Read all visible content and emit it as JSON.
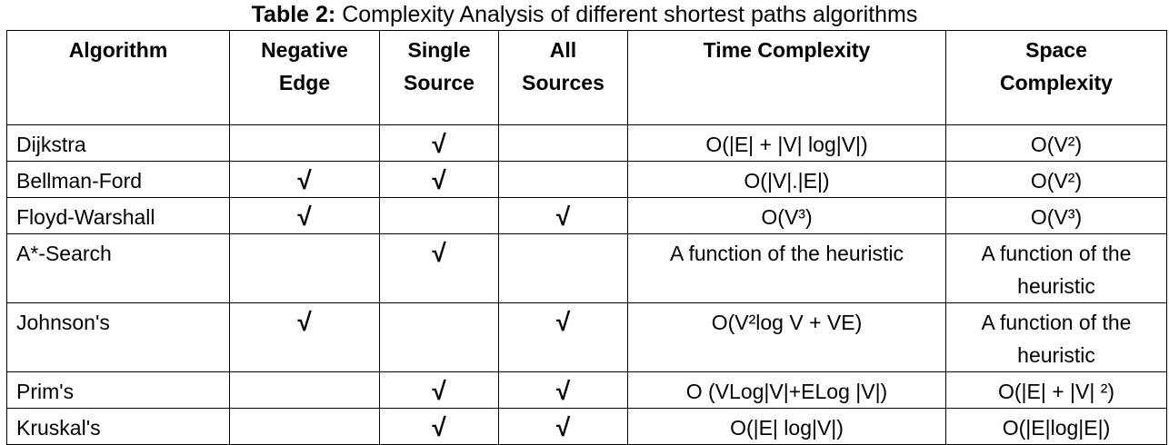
{
  "title": {
    "label": "Table 2:",
    "text": "Complexity Analysis of different shortest paths algorithms"
  },
  "table": {
    "header": [
      [
        "Algorithm"
      ],
      [
        "Negative",
        "Edge"
      ],
      [
        "Single",
        "Source"
      ],
      [
        "All",
        "Sources"
      ],
      [
        "Time Complexity"
      ],
      [
        "Space",
        "Complexity"
      ]
    ],
    "rows": [
      [
        "Dijkstra",
        null,
        "√",
        null,
        "O(|E| + |V| log|V|)",
        "O(V²)"
      ],
      [
        "Bellman-Ford",
        "√",
        "√",
        null,
        "O(|V|.|E|)",
        "O(V²)"
      ],
      [
        "Floyd-Warshall",
        "√",
        null,
        "√",
        "O(V³)",
        "O(V³)"
      ],
      [
        "A*-Search",
        null,
        "√",
        null,
        "A function of the heuristic",
        "A function of the heuristic"
      ],
      [
        "Johnson's",
        "√",
        null,
        "√",
        "O(V²log V + VE)",
        "A function of the heuristic"
      ],
      [
        "Prim's",
        null,
        "√",
        "√",
        "O (VLog|V|+ELog |V|)",
        "O(|E| + |V| ²)"
      ],
      [
        "Kruskal's",
        null,
        "√",
        "√",
        "O(|E| log|V|)",
        "O(|E|log|E|)"
      ]
    ]
  }
}
